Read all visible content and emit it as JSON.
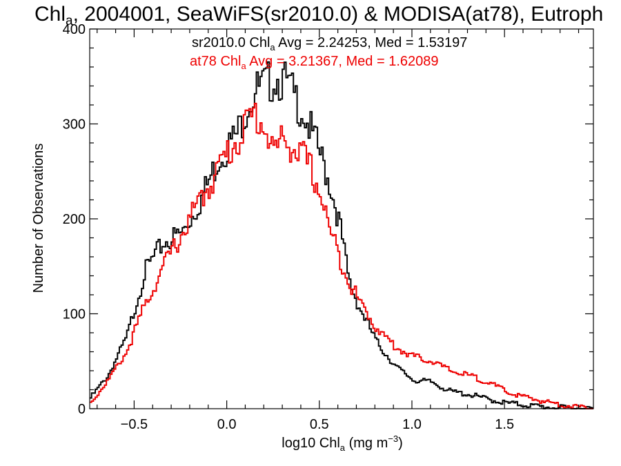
{
  "chart_data": {
    "type": "line",
    "title": {
      "pre": "Chl",
      "sub": "a",
      "post": ", 2004001, SeaWiFS(sr2010.0) & MODISA(at78), Eutroph"
    },
    "xlabel": {
      "pre": "log10 Chl",
      "sub": "a",
      "mid": " (mg m",
      "sup": "−3",
      "post": ")"
    },
    "ylabel": "Number of Observations",
    "xlim": [
      -0.74,
      1.98
    ],
    "ylim": [
      0,
      400
    ],
    "x_ticks": [
      -0.5,
      0.0,
      0.5,
      1.0,
      1.5
    ],
    "x_tick_labels": [
      "−0.5",
      "0.0",
      "0.5",
      "1.0",
      "1.5"
    ],
    "y_ticks": [
      0,
      100,
      200,
      300,
      400
    ],
    "y_tick_labels": [
      "0",
      "100",
      "200",
      "300",
      "400"
    ],
    "grid": false,
    "legend_position": "top-center",
    "annotations": [
      {
        "pre": "sr2010.0 Chl",
        "sub": "a",
        "post": " Avg = 2.24253, Med = 1.53197",
        "color": "#000000"
      },
      {
        "pre": "at78 Chl",
        "sub": "a",
        "post": " Avg = 3.21367, Med = 1.62089",
        "color": "#ee0000"
      }
    ],
    "series": [
      {
        "color": "#000000",
        "x": [
          -0.74,
          -0.64,
          -0.54,
          -0.44,
          -0.34,
          -0.24,
          -0.14,
          -0.04,
          0.06,
          0.11,
          0.16,
          0.21,
          0.26,
          0.31,
          0.36,
          0.41,
          0.46,
          0.51,
          0.56,
          0.61,
          0.66,
          0.71,
          0.81,
          0.91,
          1.01,
          1.11,
          1.21,
          1.31,
          1.41,
          1.51,
          1.61,
          1.71,
          1.81,
          1.98
        ],
        "y": [
          10,
          35,
          75,
          145,
          175,
          185,
          220,
          265,
          290,
          320,
          335,
          340,
          350,
          345,
          330,
          315,
          290,
          265,
          235,
          195,
          135,
          110,
          70,
          45,
          30,
          28,
          18,
          15,
          10,
          6,
          4,
          2,
          1,
          0
        ]
      },
      {
        "color": "#ee0000",
        "x": [
          -0.74,
          -0.64,
          -0.54,
          -0.44,
          -0.34,
          -0.24,
          -0.14,
          -0.04,
          0.06,
          0.11,
          0.16,
          0.21,
          0.26,
          0.31,
          0.36,
          0.41,
          0.46,
          0.51,
          0.56,
          0.61,
          0.66,
          0.71,
          0.81,
          0.91,
          1.01,
          1.11,
          1.21,
          1.31,
          1.41,
          1.51,
          1.61,
          1.71,
          1.81,
          1.98
        ],
        "y": [
          5,
          30,
          60,
          110,
          150,
          185,
          220,
          255,
          285,
          300,
          310,
          295,
          270,
          285,
          275,
          265,
          250,
          225,
          185,
          160,
          135,
          115,
          85,
          65,
          55,
          50,
          40,
          35,
          28,
          18,
          12,
          8,
          4,
          0
        ]
      }
    ]
  }
}
